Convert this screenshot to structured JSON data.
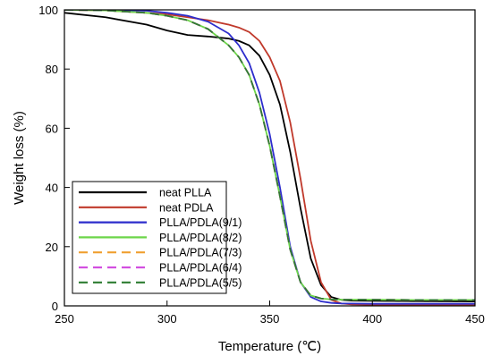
{
  "chart_data": {
    "type": "line",
    "title": "",
    "xlabel": "Temperature (℃)",
    "ylabel": "Weight loss (%)",
    "xlim": [
      250,
      450
    ],
    "ylim": [
      0,
      100
    ],
    "x_ticks": [
      "250",
      "300",
      "350",
      "400",
      "450"
    ],
    "y_ticks": [
      "0",
      "20",
      "40",
      "60",
      "80",
      "100"
    ],
    "grid": false,
    "legend_position": "bottom-left",
    "series": [
      {
        "name": "neat PLLA",
        "color": "#000000",
        "dash": "solid",
        "x": [
          250,
          270,
          290,
          300,
          310,
          320,
          330,
          335,
          340,
          345,
          350,
          355,
          360,
          365,
          370,
          375,
          380,
          385,
          390,
          400,
          420,
          450
        ],
        "y": [
          99,
          97.5,
          95,
          93,
          91.5,
          91,
          90.3,
          89.5,
          88,
          84.5,
          78,
          68,
          52,
          33,
          16,
          7,
          3,
          2,
          1.8,
          1.7,
          1.6,
          1.5
        ]
      },
      {
        "name": "neat PDLA",
        "color": "#c0392b",
        "dash": "solid",
        "x": [
          250,
          270,
          290,
          300,
          310,
          320,
          330,
          335,
          340,
          345,
          350,
          355,
          360,
          365,
          370,
          375,
          380,
          385,
          390,
          400,
          420,
          450
        ],
        "y": [
          100,
          99.8,
          99,
          98.5,
          97.5,
          96.5,
          95,
          94,
          92.5,
          89.5,
          84,
          76,
          62,
          43,
          22,
          8,
          2,
          0.8,
          0.5,
          0.4,
          0.3,
          0.3
        ]
      },
      {
        "name": "PLLA/PDLA(9/1)",
        "color": "#2d2dcc",
        "dash": "solid",
        "x": [
          250,
          270,
          290,
          300,
          310,
          320,
          330,
          335,
          340,
          345,
          350,
          355,
          360,
          365,
          370,
          375,
          380,
          385,
          390,
          400,
          420,
          450
        ],
        "y": [
          100,
          100,
          99.7,
          99,
          98,
          96,
          92,
          88,
          82,
          72,
          58,
          40,
          20,
          8,
          3,
          1.5,
          1,
          0.8,
          0.8,
          0.7,
          0.7,
          0.7
        ]
      },
      {
        "name": "PLLA/PDLA(8/2)",
        "color": "#6dd64a",
        "dash": "solid",
        "x": [
          250,
          270,
          290,
          300,
          310,
          320,
          330,
          335,
          340,
          345,
          350,
          355,
          360,
          365,
          370,
          375,
          380,
          385,
          390,
          400,
          420,
          450
        ],
        "y": [
          100,
          99.8,
          99,
          98,
          96.5,
          93.5,
          88,
          84,
          78,
          68,
          54,
          37,
          19,
          8,
          3.5,
          2.5,
          2.2,
          2.1,
          2.1,
          2.1,
          2,
          2
        ]
      },
      {
        "name": "PLLA/PDLA(7/3)",
        "color": "#f0a030",
        "dash": "dashed",
        "x": [
          250,
          270,
          290,
          300,
          310,
          320,
          330,
          335,
          340,
          345,
          350,
          355,
          360,
          365,
          370,
          375,
          380,
          385,
          390,
          400,
          420,
          450
        ],
        "y": [
          100,
          99.8,
          99,
          98,
          96.5,
          93.5,
          88,
          84,
          78,
          68,
          54,
          37,
          19,
          8,
          3.5,
          2.5,
          2.2,
          2.1,
          2.1,
          2.1,
          2,
          2
        ]
      },
      {
        "name": "PLLA/PDLA(6/4)",
        "color": "#d24fe0",
        "dash": "dashed",
        "x": [
          250,
          270,
          290,
          300,
          310,
          320,
          330,
          335,
          340,
          345,
          350,
          355,
          360,
          365,
          370,
          375,
          380,
          385,
          390,
          400,
          420,
          450
        ],
        "y": [
          100,
          99.8,
          99,
          98,
          96.5,
          93.5,
          88,
          84,
          78,
          68,
          54,
          37,
          19,
          8,
          3.5,
          2.5,
          2.2,
          2.1,
          2.1,
          2.1,
          2,
          2
        ]
      },
      {
        "name": "PLLA/PDLA(5/5)",
        "color": "#2e7d32",
        "dash": "dashed",
        "x": [
          250,
          270,
          290,
          300,
          310,
          320,
          330,
          335,
          340,
          345,
          350,
          355,
          360,
          365,
          370,
          375,
          380,
          385,
          390,
          400,
          420,
          450
        ],
        "y": [
          100,
          99.8,
          99,
          98,
          96.5,
          93.5,
          88,
          84,
          78,
          68,
          54,
          37,
          19,
          8,
          3.5,
          2.5,
          2.2,
          2.1,
          2.1,
          2.1,
          2,
          2
        ]
      }
    ]
  }
}
